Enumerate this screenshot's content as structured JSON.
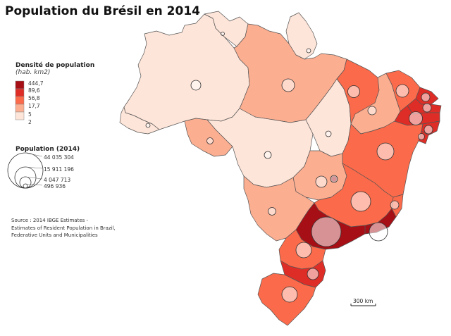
{
  "title": "Population du Brésil en 2014",
  "density_legend": {
    "title": "Densité de population",
    "subtitle": "(hab. km2)",
    "classes": [
      {
        "label": "444,7",
        "color": "#a50f15"
      },
      {
        "label": "89,6",
        "color": "#de2d26"
      },
      {
        "label": "56,8",
        "color": "#fb6a4a"
      },
      {
        "label": "17,7",
        "color": "#fcae91"
      },
      {
        "label": "5",
        "color": "#fee5d9"
      },
      {
        "label": "2",
        "color": null
      }
    ]
  },
  "population_legend": {
    "title": "Population (2014)",
    "values": [
      "44 035 304",
      "15 911 196",
      "4 047 713",
      "496 936"
    ]
  },
  "source": {
    "lines": [
      "Source : 2014 IBGE Estimates -",
      "Estimates of Resident Population in Brazil,",
      "Federative Units and Municipalities"
    ]
  },
  "scale_bar": {
    "label": "300 km"
  },
  "colors": {
    "class1": "#fee5d9",
    "class2": "#fcae91",
    "class3": "#fb6a4a",
    "class4": "#de2d26",
    "class5": "#a50f15",
    "border": "#555555",
    "circle_fill": "#ffffff",
    "circle_stroke": "#333333"
  }
}
